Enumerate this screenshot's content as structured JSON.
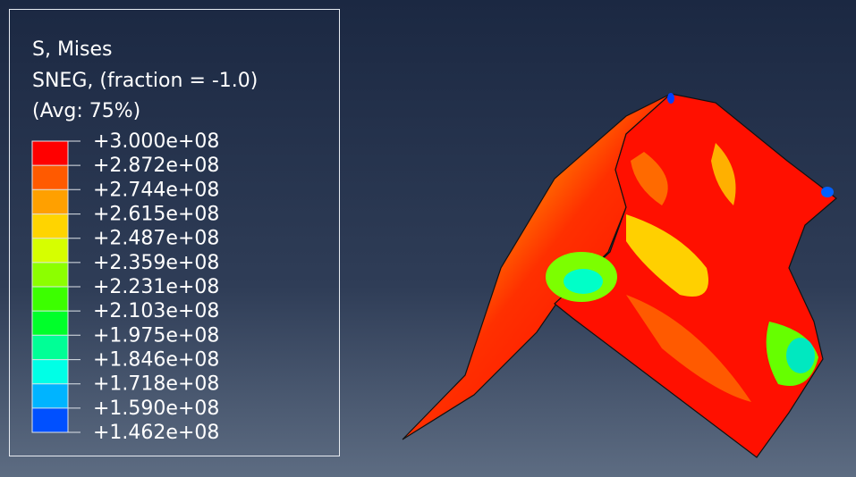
{
  "legend": {
    "title": [
      "S, Mises",
      "SNEG, (fraction = -1.0)",
      "(Avg: 75%)"
    ],
    "ticks": [
      {
        "value": 300000000,
        "label": "+3.000e+08"
      },
      {
        "value": 287200000,
        "label": "+2.872e+08"
      },
      {
        "value": 274400000,
        "label": "+2.744e+08"
      },
      {
        "value": 261500000,
        "label": "+2.615e+08"
      },
      {
        "value": 248700000,
        "label": "+2.487e+08"
      },
      {
        "value": 235900000,
        "label": "+2.359e+08"
      },
      {
        "value": 223100000,
        "label": "+2.231e+08"
      },
      {
        "value": 210300000,
        "label": "+2.103e+08"
      },
      {
        "value": 197500000,
        "label": "+1.975e+08"
      },
      {
        "value": 184600000,
        "label": "+1.846e+08"
      },
      {
        "value": 171800000,
        "label": "+1.718e+08"
      },
      {
        "value": 159000000,
        "label": "+1.590e+08"
      },
      {
        "value": 146200000,
        "label": "+1.462e+08"
      }
    ],
    "colors": [
      "#ff0000",
      "#ff5a00",
      "#ffa000",
      "#ffd400",
      "#d6ff00",
      "#8cff00",
      "#3cff00",
      "#00ff2a",
      "#00ff96",
      "#00ffe6",
      "#00b4ff",
      "#0050ff",
      "#0000ff"
    ]
  }
}
